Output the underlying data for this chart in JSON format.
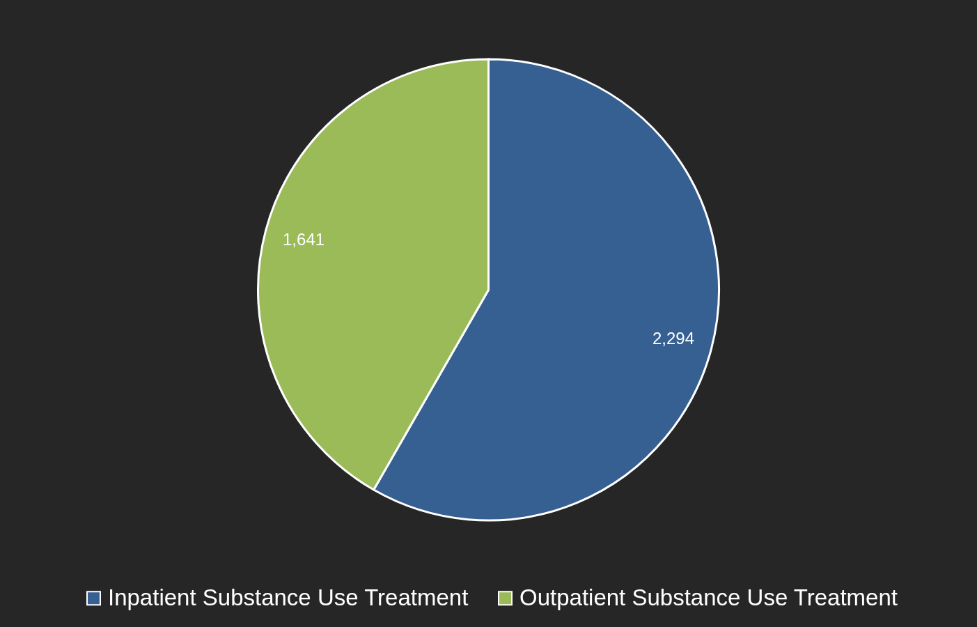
{
  "chart_data": {
    "type": "pie",
    "categories": [
      "Inpatient Substance Use Treatment",
      "Outpatient Substance Use Treatment"
    ],
    "values": [
      2294,
      1641
    ],
    "colors": [
      "#376092",
      "#9bbb59"
    ],
    "value_labels": [
      "2,294",
      "1,641"
    ],
    "legend": "bottom"
  }
}
